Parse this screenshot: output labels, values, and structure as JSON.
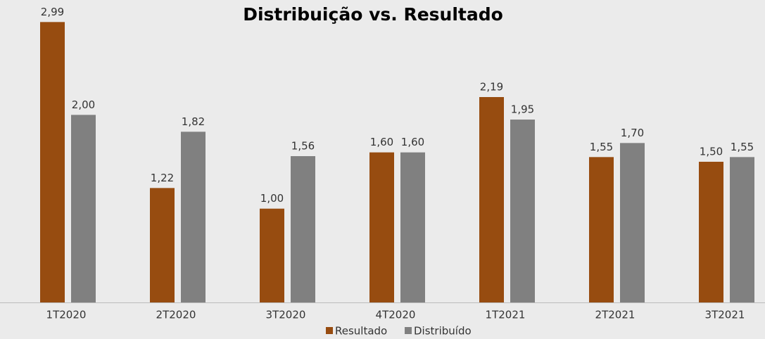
{
  "chart_data": {
    "type": "bar",
    "title": "Distribuição vs. Resultado",
    "categories": [
      "1T2020",
      "2T2020",
      "3T2020",
      "4T2020",
      "1T2021",
      "2T2021",
      "3T2021"
    ],
    "series": [
      {
        "name": "Resultado",
        "color": "#974c10",
        "values": [
          2.99,
          1.22,
          1.0,
          1.6,
          2.19,
          1.55,
          1.5
        ],
        "value_labels": [
          "2,99",
          "1,22",
          "1,00",
          "1,60",
          "2,19",
          "1,55",
          "1,50"
        ]
      },
      {
        "name": "Distribuído",
        "color": "#808080",
        "values": [
          2.0,
          1.82,
          1.56,
          1.6,
          1.95,
          1.7,
          1.55
        ],
        "value_labels": [
          "2,00",
          "1,82",
          "1,56",
          "1,60",
          "1,95",
          "1,70",
          "1,55"
        ]
      }
    ],
    "ylim": [
      0,
      3
    ],
    "legend": "bottom"
  }
}
